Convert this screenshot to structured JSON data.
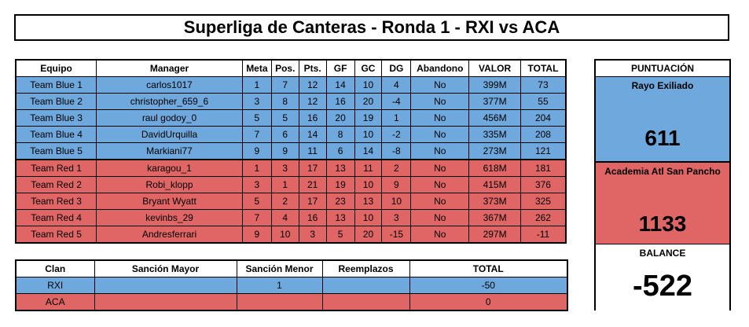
{
  "title": "Superliga de Canteras - Ronda 1 - RXI vs ACA",
  "main_table": {
    "headers": [
      "Equipo",
      "Manager",
      "Meta",
      "Pos.",
      "Pts.",
      "GF",
      "GC",
      "DG",
      "Abandono",
      "VALOR",
      "TOTAL"
    ],
    "rows": [
      {
        "team": "Team Blue 1",
        "manager": "carlos1017",
        "meta": "1",
        "pos": "7",
        "pts": "12",
        "gf": "14",
        "gc": "10",
        "dg": "4",
        "abandono": "No",
        "valor": "399M",
        "total": "73"
      },
      {
        "team": "Team Blue 2",
        "manager": "christopher_659_6",
        "meta": "3",
        "pos": "8",
        "pts": "12",
        "gf": "16",
        "gc": "20",
        "dg": "-4",
        "abandono": "No",
        "valor": "377M",
        "total": "55"
      },
      {
        "team": "Team Blue 3",
        "manager": "raul godoy_0",
        "meta": "5",
        "pos": "5",
        "pts": "16",
        "gf": "20",
        "gc": "19",
        "dg": "1",
        "abandono": "No",
        "valor": "456M",
        "total": "204"
      },
      {
        "team": "Team Blue 4",
        "manager": "DavidUrquilla",
        "meta": "7",
        "pos": "6",
        "pts": "14",
        "gf": "8",
        "gc": "10",
        "dg": "-2",
        "abandono": "No",
        "valor": "335M",
        "total": "208"
      },
      {
        "team": "Team Blue 5",
        "manager": "Markiani77",
        "meta": "9",
        "pos": "9",
        "pts": "11",
        "gf": "6",
        "gc": "14",
        "dg": "-8",
        "abandono": "No",
        "valor": "273M",
        "total": "121"
      },
      {
        "team": "Team Red 1",
        "manager": "karagou_1",
        "meta": "1",
        "pos": "3",
        "pts": "17",
        "gf": "13",
        "gc": "11",
        "dg": "2",
        "abandono": "No",
        "valor": "618M",
        "total": "181"
      },
      {
        "team": "Team Red 2",
        "manager": "Robi_klopp",
        "meta": "3",
        "pos": "1",
        "pts": "21",
        "gf": "19",
        "gc": "10",
        "dg": "9",
        "abandono": "No",
        "valor": "415M",
        "total": "376"
      },
      {
        "team": "Team Red 3",
        "manager": "Bryant Wyatt",
        "meta": "5",
        "pos": "2",
        "pts": "17",
        "gf": "23",
        "gc": "13",
        "dg": "10",
        "abandono": "No",
        "valor": "373M",
        "total": "325"
      },
      {
        "team": "Team Red 4",
        "manager": "kevinbs_29",
        "meta": "7",
        "pos": "4",
        "pts": "16",
        "gf": "13",
        "gc": "10",
        "dg": "3",
        "abandono": "No",
        "valor": "367M",
        "total": "262"
      },
      {
        "team": "Team Red 5",
        "manager": "Andresferrari",
        "meta": "9",
        "pos": "10",
        "pts": "3",
        "gf": "5",
        "gc": "20",
        "dg": "-15",
        "abandono": "No",
        "valor": "297M",
        "total": "-11"
      }
    ]
  },
  "clan_table": {
    "headers": [
      "Clan",
      "Sanción Mayor",
      "Sanción Menor",
      "Reemplazos",
      "TOTAL"
    ],
    "rows": [
      {
        "clan": "RXI",
        "mayor": "",
        "menor": "1",
        "reemplazos": "",
        "total": "-50"
      },
      {
        "clan": "ACA",
        "mayor": "",
        "menor": "",
        "reemplazos": "",
        "total": "0"
      }
    ]
  },
  "score": {
    "header": "PUNTUACIÓN",
    "blue_name": "Rayo Exiliado",
    "blue_value": "611",
    "red_name": "Academia Atl San Pancho",
    "red_value": "1133",
    "balance_label": "BALANCE",
    "balance_value": "-522"
  },
  "colors": {
    "blue": "#6fa8dc",
    "red": "#e06666"
  }
}
